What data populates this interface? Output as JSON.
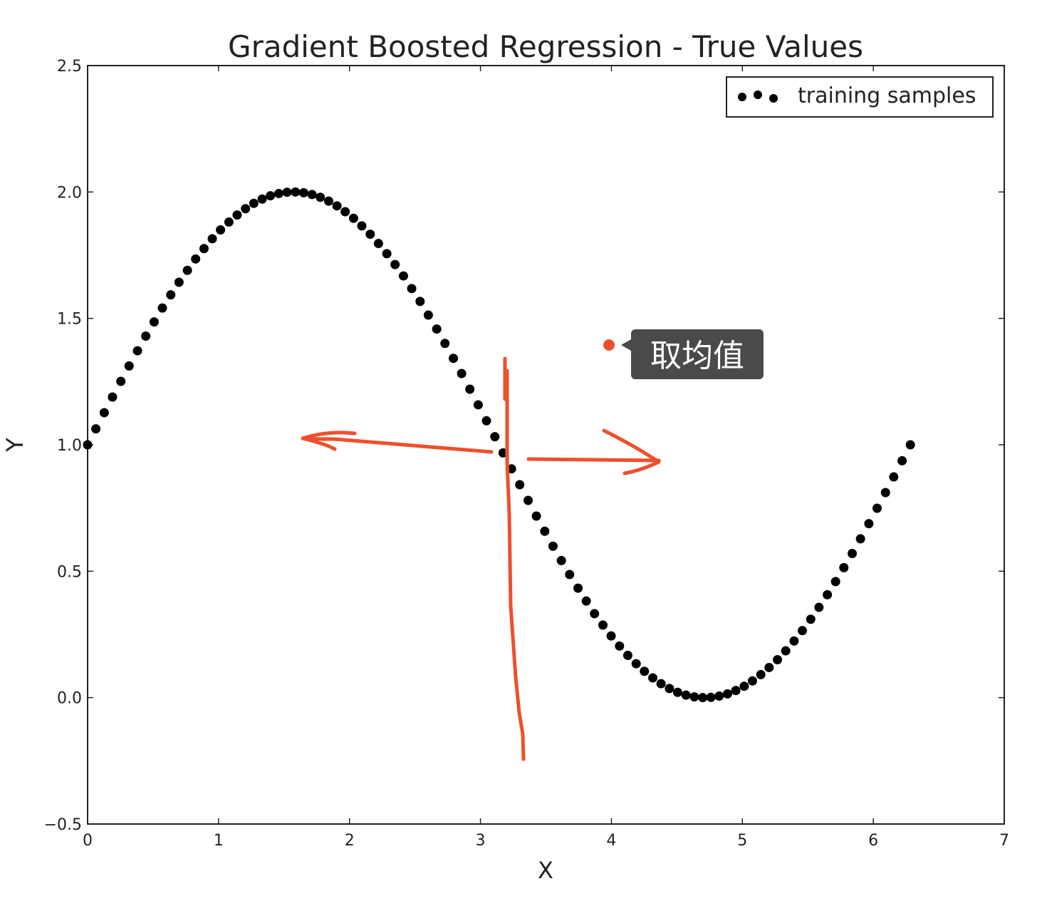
{
  "chart_data": {
    "type": "scatter",
    "title": "Gradient Boosted Regression - True Values",
    "xlabel": "X",
    "ylabel": "Y",
    "xlim": [
      0,
      7
    ],
    "ylim": [
      -0.5,
      2.5
    ],
    "xticks": [
      0,
      1,
      2,
      3,
      4,
      5,
      6,
      7
    ],
    "xtick_labels": [
      "0",
      "1",
      "2",
      "3",
      "4",
      "5",
      "6",
      "7"
    ],
    "yticks": [
      -0.5,
      0.0,
      0.5,
      1.0,
      1.5,
      2.0,
      2.5
    ],
    "ytick_labels": [
      "−0.5",
      "0.0",
      "0.5",
      "1.0",
      "1.5",
      "2.0",
      "2.5"
    ],
    "grid": false,
    "legend_position": "top-right",
    "series": [
      {
        "name": "training samples",
        "marker": "o",
        "color": "#000000",
        "x": [
          0.0,
          0.063,
          0.127,
          0.19,
          0.254,
          0.317,
          0.381,
          0.444,
          0.508,
          0.571,
          0.635,
          0.698,
          0.762,
          0.825,
          0.889,
          0.952,
          1.015,
          1.079,
          1.142,
          1.206,
          1.269,
          1.333,
          1.396,
          1.46,
          1.523,
          1.587,
          1.65,
          1.714,
          1.777,
          1.841,
          1.904,
          1.967,
          2.031,
          2.094,
          2.158,
          2.221,
          2.285,
          2.348,
          2.412,
          2.475,
          2.539,
          2.602,
          2.666,
          2.729,
          2.793,
          2.856,
          2.919,
          2.983,
          3.046,
          3.11,
          3.173,
          3.237,
          3.3,
          3.364,
          3.427,
          3.491,
          3.554,
          3.618,
          3.681,
          3.745,
          3.808,
          3.871,
          3.935,
          3.998,
          4.062,
          4.125,
          4.189,
          4.252,
          4.316,
          4.379,
          4.443,
          4.506,
          4.57,
          4.633,
          4.697,
          4.76,
          4.823,
          4.887,
          4.95,
          5.014,
          5.077,
          5.141,
          5.204,
          5.268,
          5.331,
          5.395,
          5.458,
          5.522,
          5.585,
          5.649,
          5.712,
          5.775,
          5.839,
          5.902,
          5.966,
          6.029,
          6.093,
          6.156,
          6.22,
          6.283
        ],
        "y": [
          1.0,
          1.063,
          1.127,
          1.189,
          1.251,
          1.312,
          1.372,
          1.43,
          1.486,
          1.541,
          1.593,
          1.643,
          1.69,
          1.735,
          1.776,
          1.815,
          1.85,
          1.881,
          1.909,
          1.934,
          1.955,
          1.972,
          1.985,
          1.994,
          1.999,
          2.0,
          1.997,
          1.99,
          1.979,
          1.964,
          1.945,
          1.922,
          1.896,
          1.866,
          1.833,
          1.796,
          1.756,
          1.713,
          1.668,
          1.618,
          1.567,
          1.513,
          1.458,
          1.401,
          1.342,
          1.282,
          1.22,
          1.158,
          1.095,
          1.032,
          0.968,
          0.905,
          0.842,
          0.78,
          0.718,
          0.658,
          0.599,
          0.542,
          0.487,
          0.433,
          0.382,
          0.332,
          0.287,
          0.244,
          0.204,
          0.167,
          0.134,
          0.104,
          0.078,
          0.055,
          0.036,
          0.021,
          0.01,
          0.003,
          0.0,
          0.001,
          0.006,
          0.015,
          0.028,
          0.045,
          0.066,
          0.091,
          0.119,
          0.15,
          0.185,
          0.224,
          0.265,
          0.31,
          0.357,
          0.407,
          0.459,
          0.514,
          0.57,
          0.628,
          0.688,
          0.749,
          0.811,
          0.873,
          0.937,
          1.0
        ]
      }
    ]
  },
  "annotation": {
    "tooltip_label": "取均值",
    "color": "#ee4f2b",
    "tooltip_bg": "#4a4a4a"
  }
}
